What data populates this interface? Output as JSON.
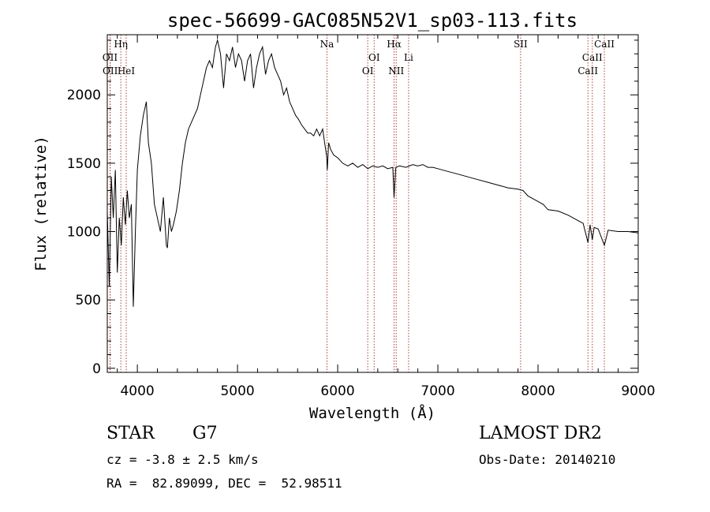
{
  "chart_data": {
    "type": "line",
    "title": "spec-56699-GAC085N52V1_sp03-113.fits",
    "xlabel": "Wavelength (Å)",
    "ylabel": "Flux (relative)",
    "xlim": [
      3700,
      9000
    ],
    "ylim": [
      -30,
      2440
    ],
    "x_ticks": [
      4000,
      5000,
      6000,
      7000,
      8000,
      9000
    ],
    "y_ticks": [
      0,
      500,
      1000,
      1500,
      2000
    ],
    "grid": false,
    "series": [
      {
        "x": [
          3700,
          3720,
          3740,
          3760,
          3780,
          3800,
          3820,
          3840,
          3860,
          3880,
          3900,
          3920,
          3940,
          3960,
          3980,
          4000,
          4030,
          4060,
          4090,
          4110,
          4140,
          4170,
          4200,
          4230,
          4260,
          4290,
          4300,
          4320,
          4340,
          4360,
          4390,
          4420,
          4450,
          4480,
          4510,
          4540,
          4570,
          4600,
          4630,
          4660,
          4690,
          4720,
          4750,
          4780,
          4800,
          4830,
          4861,
          4890,
          4920,
          4950,
          4980,
          5010,
          5040,
          5070,
          5100,
          5130,
          5160,
          5190,
          5220,
          5250,
          5280,
          5310,
          5340,
          5370,
          5400,
          5430,
          5460,
          5490,
          5520,
          5550,
          5580,
          5610,
          5640,
          5670,
          5700,
          5730,
          5760,
          5790,
          5820,
          5850,
          5870,
          5890,
          5896,
          5910,
          5930,
          5960,
          6000,
          6050,
          6100,
          6150,
          6200,
          6250,
          6300,
          6350,
          6400,
          6450,
          6500,
          6550,
          6563,
          6580,
          6620,
          6680,
          6750,
          6800,
          6850,
          6900,
          6950,
          7000,
          7100,
          7200,
          7300,
          7400,
          7500,
          7600,
          7700,
          7800,
          7850,
          7900,
          8000,
          8050,
          8100,
          8200,
          8300,
          8400,
          8450,
          8498,
          8520,
          8542,
          8560,
          8600,
          8662,
          8700,
          8800,
          8900,
          9000
        ],
        "y": [
          1150,
          600,
          1400,
          1100,
          1450,
          700,
          1100,
          900,
          1250,
          1050,
          1300,
          1100,
          1200,
          450,
          1000,
          1450,
          1700,
          1850,
          1950,
          1650,
          1500,
          1200,
          1100,
          1000,
          1250,
          900,
          880,
          1100,
          1000,
          1050,
          1150,
          1300,
          1500,
          1650,
          1750,
          1800,
          1850,
          1900,
          2000,
          2100,
          2200,
          2250,
          2200,
          2350,
          2400,
          2300,
          2050,
          2300,
          2250,
          2350,
          2200,
          2300,
          2250,
          2100,
          2250,
          2300,
          2050,
          2200,
          2300,
          2350,
          2150,
          2250,
          2300,
          2200,
          2150,
          2100,
          2000,
          2050,
          1950,
          1900,
          1850,
          1820,
          1780,
          1750,
          1720,
          1720,
          1700,
          1750,
          1700,
          1750,
          1650,
          1550,
          1450,
          1650,
          1600,
          1560,
          1540,
          1500,
          1480,
          1500,
          1470,
          1490,
          1460,
          1480,
          1470,
          1480,
          1460,
          1470,
          1250,
          1470,
          1480,
          1470,
          1490,
          1480,
          1490,
          1470,
          1470,
          1460,
          1440,
          1420,
          1400,
          1380,
          1360,
          1340,
          1320,
          1310,
          1300,
          1260,
          1220,
          1200,
          1160,
          1150,
          1120,
          1080,
          1060,
          920,
          1050,
          940,
          1030,
          1020,
          900,
          1010,
          1000,
          1000,
          990
        ]
      }
    ],
    "line_markers": [
      {
        "label": "Hη",
        "x": 3835,
        "row": 0
      },
      {
        "label": "OII",
        "x": 3727,
        "row": 1
      },
      {
        "label": "OII",
        "x": 3729,
        "row": 2
      },
      {
        "label": "HeI",
        "x": 3889,
        "row": 2
      },
      {
        "label": "Na",
        "x": 5893,
        "row": 0
      },
      {
        "label": "OI",
        "x": 6364,
        "row": 1
      },
      {
        "label": "OI",
        "x": 6300,
        "row": 2
      },
      {
        "label": "Hα",
        "x": 6563,
        "row": 0
      },
      {
        "label": "Li",
        "x": 6708,
        "row": 1
      },
      {
        "label": "NII",
        "x": 6584,
        "row": 2
      },
      {
        "label": "SII",
        "x": 7826,
        "row": 0
      },
      {
        "label": "CaII",
        "x": 8542,
        "row": 1
      },
      {
        "label": "CaII",
        "x": 8498,
        "row": 2
      },
      {
        "label": "CaII",
        "x": 8662,
        "row": 0
      }
    ],
    "marker_color": "#b23a3a"
  },
  "info": {
    "object_class": "STAR",
    "subclass": "G7",
    "survey": "LAMOST DR2",
    "redshift": "cz = -3.8 ± 2.5 km/s",
    "obs_date": "Obs-Date: 20140210",
    "coords": "RA =  82.89099, DEC =  52.98511"
  }
}
